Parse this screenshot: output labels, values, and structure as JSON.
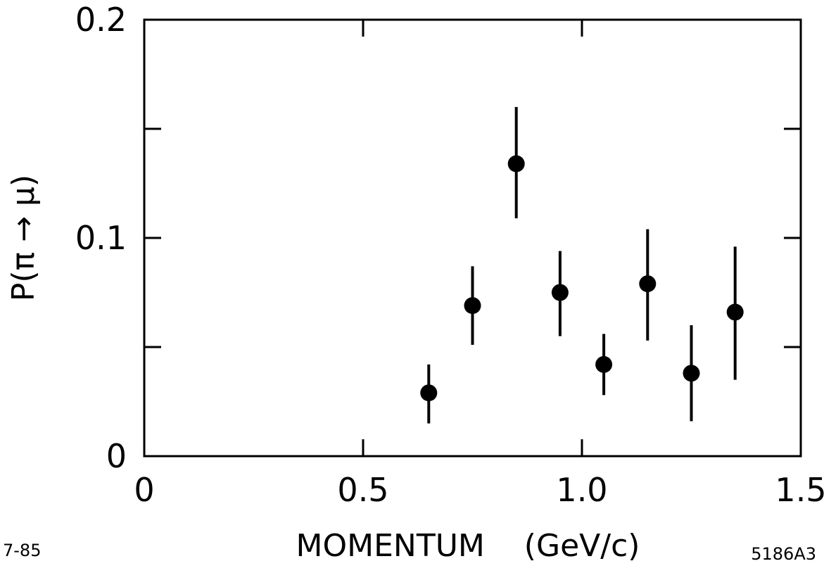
{
  "chart_data": {
    "type": "scatter",
    "xlabel": "MOMENTUM    (GeV/c)",
    "ylabel": "P(π → μ)",
    "xlim": [
      0,
      1.5
    ],
    "ylim": [
      0,
      0.2
    ],
    "x_ticks": [
      {
        "value": 0,
        "label": "0"
      },
      {
        "value": 0.5,
        "label": "0.5"
      },
      {
        "value": 1.0,
        "label": "1.0"
      },
      {
        "value": 1.5,
        "label": "1.5"
      }
    ],
    "y_ticks": [
      {
        "value": 0,
        "label": "0"
      },
      {
        "value": 0.05,
        "label": ""
      },
      {
        "value": 0.1,
        "label": "0.1"
      },
      {
        "value": 0.15,
        "label": ""
      },
      {
        "value": 0.2,
        "label": "0.2"
      }
    ],
    "grid": false,
    "marker_color": "#000000",
    "points": [
      {
        "x": 0.65,
        "y": 0.029,
        "y_low": 0.015,
        "y_high": 0.042
      },
      {
        "x": 0.75,
        "y": 0.069,
        "y_low": 0.051,
        "y_high": 0.087
      },
      {
        "x": 0.85,
        "y": 0.134,
        "y_low": 0.109,
        "y_high": 0.16
      },
      {
        "x": 0.95,
        "y": 0.075,
        "y_low": 0.055,
        "y_high": 0.094
      },
      {
        "x": 1.05,
        "y": 0.042,
        "y_low": 0.028,
        "y_high": 0.056
      },
      {
        "x": 1.15,
        "y": 0.079,
        "y_low": 0.053,
        "y_high": 0.104
      },
      {
        "x": 1.25,
        "y": 0.038,
        "y_low": 0.016,
        "y_high": 0.06
      },
      {
        "x": 1.35,
        "y": 0.066,
        "y_low": 0.035,
        "y_high": 0.096
      }
    ]
  },
  "annotations": {
    "date_code": "7-85",
    "figure_code": "5186A3"
  }
}
